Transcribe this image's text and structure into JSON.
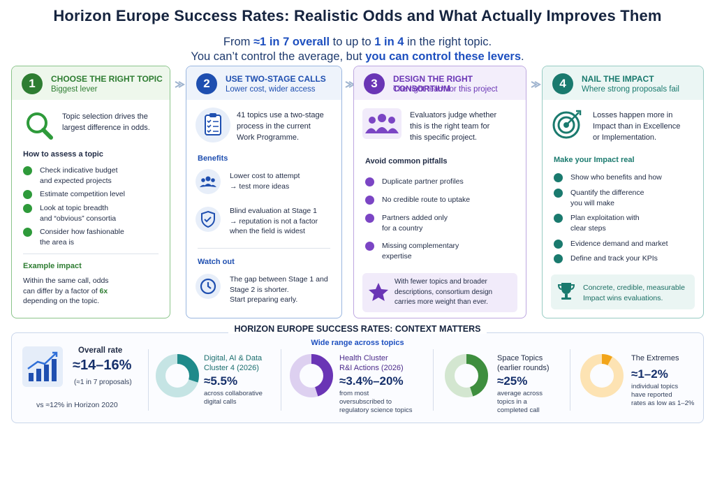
{
  "title": "Horizon Europe Success Rates: Realistic Odds and What Actually Improves Them",
  "subtitle": {
    "l1_pre": "From ",
    "l1_b1": "≈1 in 7 overall",
    "l1_mid": " to up to ",
    "l1_b2": "1 in 4",
    "l1_post": " in the right topic.",
    "l2_pre": "You can’t control the average, but ",
    "l2_b": "you can control these levers",
    "l2_post": "."
  },
  "colors": {
    "green": "#2e7d32",
    "blue": "#1f4fb0",
    "purple": "#6a35b5",
    "teal": "#1a7a6e"
  },
  "cards": [
    {
      "num": "1",
      "head": "CHOOSE THE RIGHT TOPIC",
      "tag": "Biggest lever",
      "intro_icon": "magnifier-icon",
      "intro": [
        "Topic selection drives the",
        "largest difference in odds."
      ],
      "section1": "How to assess a topic",
      "items": [
        [
          "Check indicative budget",
          "and expected projects"
        ],
        [
          "Estimate competition level"
        ],
        [
          "Look at topic breadth",
          "and “obvious” consortia"
        ],
        [
          "Consider how fashionable",
          "the area is"
        ]
      ],
      "section2": "Example impact",
      "example": [
        "Within the same call, odds",
        "can differ by a factor of ",
        "6x",
        "depending on the topic."
      ]
    },
    {
      "num": "2",
      "head": "USE TWO-STAGE CALLS",
      "tag": "Lower cost, wider access",
      "intro_icon": "clipboard-checklist-icon",
      "intro": [
        "41 topics use a two-stage",
        "process in the current",
        "Work Programme."
      ],
      "section1": "Benefits",
      "benefits": [
        {
          "icon": "people-group-icon",
          "lines": [
            "Lower cost to attempt",
            "→ test more ideas"
          ]
        },
        {
          "icon": "shield-check-icon",
          "lines": [
            "Blind evaluation at Stage 1",
            "→ reputation is not a factor",
            "when the field is widest"
          ]
        }
      ],
      "section2": "Watch out",
      "watch": {
        "icon": "clock-icon",
        "lines": [
          "The gap between Stage 1 and",
          "Stage 2 is shorter.",
          "Start preparing early."
        ]
      }
    },
    {
      "num": "3",
      "head": "DESIGN THE RIGHT CONSORTIUM",
      "tag": "The right team for this project",
      "intro_icon": "team-icon",
      "intro": [
        "Evaluators judge whether",
        "this is the right team for",
        "this specific project."
      ],
      "section1": "Avoid common pitfalls",
      "items": [
        [
          "Duplicate partner profiles"
        ],
        [
          "No credible route to uptake"
        ],
        [
          "Partners added only",
          "for a country"
        ],
        [
          "Missing complementary",
          "expertise"
        ]
      ],
      "note_icon": "star-icon",
      "note": [
        "With fewer topics and broader",
        "descriptions, consortium design",
        "carries more weight than ever."
      ]
    },
    {
      "num": "4",
      "head": "NAIL THE IMPACT",
      "tag": "Where strong proposals fail",
      "intro_icon": "target-icon",
      "intro": [
        "Losses happen more in",
        "Impact than in Excellence",
        "or Implementation."
      ],
      "section1": "Make your Impact real",
      "items": [
        [
          "Show who benefits and how"
        ],
        [
          "Quantify the difference",
          "you will make"
        ],
        [
          "Plan exploitation with",
          "clear steps"
        ],
        [
          "Evidence demand and market"
        ],
        [
          "Define and track your KPIs"
        ]
      ],
      "note_icon": "trophy-icon",
      "note": [
        "Concrete, credible, measurable",
        "Impact wins evaluations."
      ]
    }
  ],
  "bottom": {
    "title": "HORIZON EUROPE SUCCESS RATES:  CONTEXT MATTERS",
    "subtitle": "Wide range across topics",
    "overall": {
      "icon": "rising-bar-chart-icon",
      "label": "Overall rate",
      "value": "≈14–16%",
      "note": "(≈1 in 7 proposals)",
      "compare": "vs ≈12% in Horizon 2020"
    },
    "stats": [
      {
        "name1": "Digital, AI & Data",
        "name2": "Cluster 4 (2026)",
        "value": "≈5.5%",
        "desc": [
          "across collaborative",
          "digital calls"
        ],
        "share": 0.3,
        "color": "#1f8a8a",
        "track": "#c5e4e4"
      },
      {
        "name1": "Health Cluster",
        "name2": "R&I Actions (2026)",
        "value": "≈3.4%–20%",
        "desc": [
          "from most",
          "oversubscribed to",
          "regulatory science topics"
        ],
        "share": 0.45,
        "color": "#6a35b5",
        "track": "#ddd0f0"
      },
      {
        "name1": "Space Topics",
        "name2": "(earlier rounds)",
        "value": "≈25%",
        "desc": [
          "average across",
          "topics in a",
          "completed call"
        ],
        "share": 0.45,
        "color": "#3e8e3e",
        "track": "#d3e6d0"
      },
      {
        "name1": "The Extremes",
        "name2": "",
        "value": "≈1–2%",
        "desc": [
          "individual topics",
          "have reported",
          "rates as low as 1–2%"
        ],
        "share": 0.08,
        "color": "#f2a51a",
        "track": "#fde3b3"
      }
    ]
  }
}
